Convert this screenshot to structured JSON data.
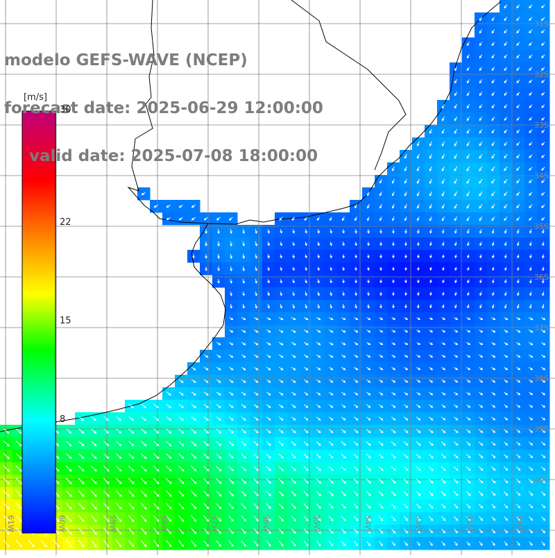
{
  "title": {
    "model": "modelo GEFS-WAVE (NCEP)",
    "forecast": "forecast date: 2025-06-29 12:00:00",
    "valid": "valid date: 2025-07-08 18:00:00"
  },
  "colorbar": {
    "unit": "[m/s]",
    "min": 0,
    "max": 30,
    "ticks": [
      {
        "value": 30,
        "label": "30"
      },
      {
        "value": 22,
        "label": "22"
      },
      {
        "value": 15,
        "label": "15"
      },
      {
        "value": 8,
        "label": "8"
      }
    ],
    "stops": [
      {
        "value": 0,
        "color": "#0000ff"
      },
      {
        "value": 8,
        "color": "#00ffff"
      },
      {
        "value": 13,
        "color": "#00ff00"
      },
      {
        "value": 17,
        "color": "#ffff00"
      },
      {
        "value": 22,
        "color": "#ff6600"
      },
      {
        "value": 25,
        "color": "#ff0000"
      },
      {
        "value": 30,
        "color": "#c0007a"
      }
    ]
  },
  "map": {
    "lon_range": [
      -61.2,
      -49.9
    ],
    "lat_range": [
      -41.5,
      -30.5
    ],
    "lon_labels": [
      "61W",
      "60W",
      "59W",
      "58W",
      "57W",
      "56W",
      "55W",
      "54W",
      "53W",
      "52W",
      "51W"
    ],
    "lat_labels": [
      "31S",
      "32S",
      "33S",
      "34S",
      "35S",
      "36S",
      "37S",
      "38S",
      "39S",
      "40S"
    ],
    "grid_color": "#808080",
    "land_color": "#ffffff",
    "coast_color": "#000000",
    "arrow_color": "#ffffff"
  }
}
